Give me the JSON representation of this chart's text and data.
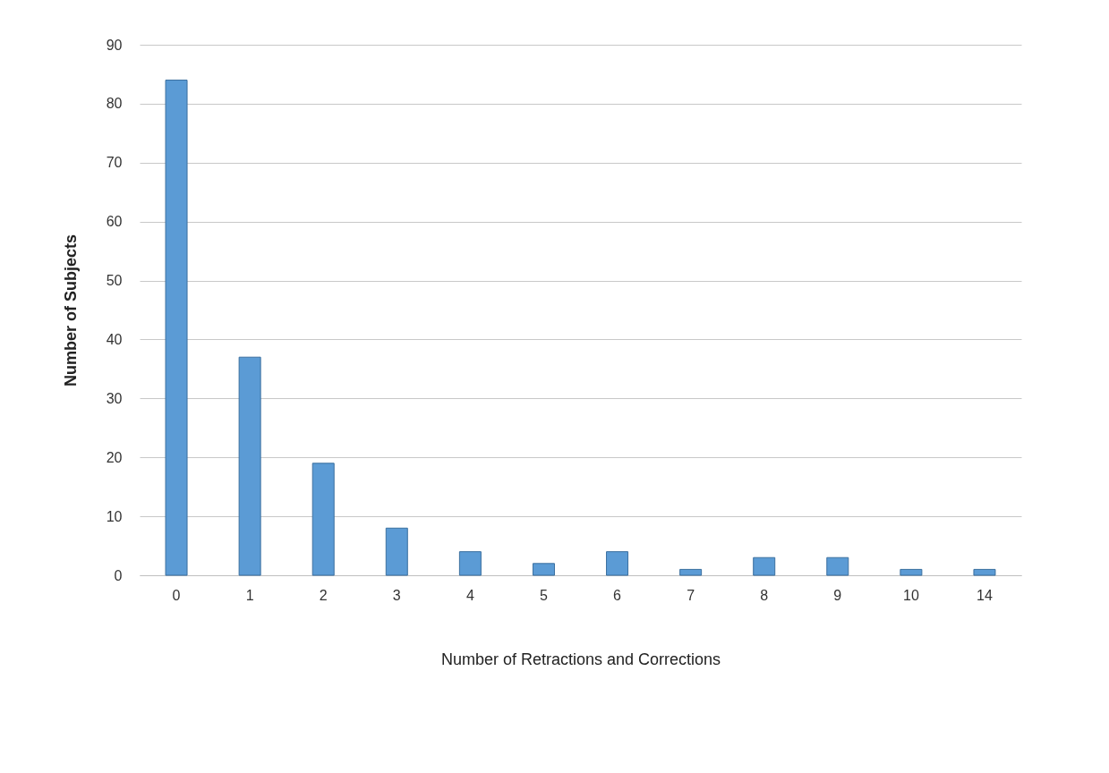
{
  "chart_data": {
    "type": "bar",
    "xlabel": "Number of Retractions and Corrections",
    "ylabel": "Number of Subjects",
    "categories": [
      "0",
      "1",
      "2",
      "3",
      "4",
      "5",
      "6",
      "7",
      "8",
      "9",
      "10",
      "14"
    ],
    "values": [
      84,
      37,
      19,
      8,
      4,
      2,
      4,
      1,
      3,
      3,
      1,
      1
    ],
    "color": "#5b9bd5",
    "ylim": [
      0,
      90
    ],
    "yticks": [
      0,
      10,
      20,
      30,
      40,
      50,
      60,
      70,
      80,
      90
    ],
    "grid": "y"
  }
}
